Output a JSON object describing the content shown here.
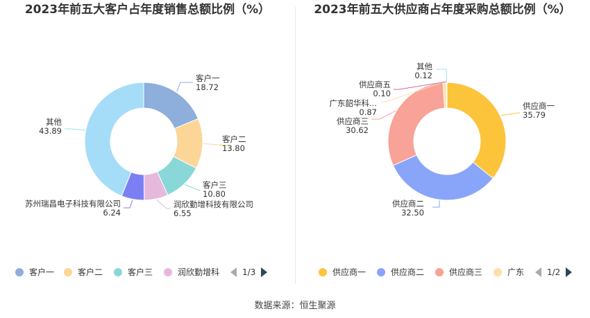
{
  "source": "数据来源：恒生聚源",
  "chart_data": [
    {
      "type": "pie",
      "donut": true,
      "title": "2023年前五大客户占年度销售总额比例（%）",
      "slices": [
        {
          "name": "客户一",
          "value": 18.72,
          "color": "#8eaedb",
          "label": [
            "客户一",
            "18.72"
          ]
        },
        {
          "name": "客户二",
          "value": 13.8,
          "color": "#fcd697",
          "label": [
            "客户二",
            "13.80"
          ]
        },
        {
          "name": "客户三",
          "value": 10.8,
          "color": "#8ad7d9",
          "label": [
            "客户三",
            "10.80"
          ]
        },
        {
          "name": "润欣勤增科技有限公司",
          "value": 6.55,
          "color": "#e6b8dc",
          "label": [
            "润欣勤增科技有限公司",
            "6.55"
          ]
        },
        {
          "name": "苏州瑞昌电子科技有限公司",
          "value": 6.24,
          "color": "#7b7ff3",
          "label": [
            "苏州瑞昌电子科技有限公司",
            "6.24"
          ]
        },
        {
          "name": "其他",
          "value": 43.89,
          "color": "#a5dcf8",
          "label": [
            "其他",
            "43.89"
          ]
        }
      ],
      "legend": {
        "position": "bottom",
        "items": [
          {
            "label": "客户一",
            "color": "#8eaedb"
          },
          {
            "label": "客户二",
            "color": "#fcd697"
          },
          {
            "label": "客户三",
            "color": "#8ad7d9"
          },
          {
            "label": "润欣勤增科",
            "color": "#e6b8dc"
          }
        ],
        "page": "1/3"
      }
    },
    {
      "type": "pie",
      "donut": true,
      "title": "2023年前五大供应商占年度采购总额比例（%）",
      "slices": [
        {
          "name": "供应商一",
          "value": 35.79,
          "color": "#fcc43a",
          "label": [
            "供应商一",
            "35.79"
          ]
        },
        {
          "name": "供应商二",
          "value": 32.5,
          "color": "#89a5f9",
          "label": [
            "供应商二",
            "32.50"
          ]
        },
        {
          "name": "供应商三",
          "value": 30.62,
          "color": "#f8a298",
          "label": [
            "供应商三",
            "30.62"
          ]
        },
        {
          "name": "广东韶华科...",
          "value": 0.87,
          "color": "#fde0a8",
          "label": [
            "广东韶华科...",
            "0.87"
          ]
        },
        {
          "name": "供应商五",
          "value": 0.1,
          "color": "#c76aa7",
          "label": [
            "供应商五",
            "0.10"
          ]
        },
        {
          "name": "其他",
          "value": 0.12,
          "color": "#a5dcf8",
          "label": [
            "其他",
            "0.12"
          ]
        }
      ],
      "legend": {
        "position": "bottom",
        "items": [
          {
            "label": "供应商一",
            "color": "#fcc43a"
          },
          {
            "label": "供应商二",
            "color": "#89a5f9"
          },
          {
            "label": "供应商三",
            "color": "#f8a298"
          },
          {
            "label": "广东",
            "color": "#fde0a8"
          }
        ],
        "page": "1/2"
      }
    }
  ]
}
